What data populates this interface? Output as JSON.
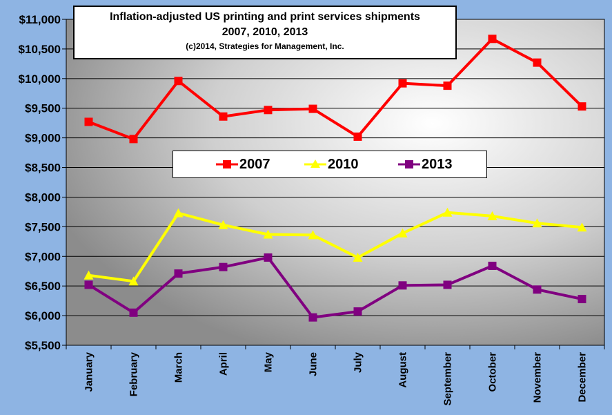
{
  "chart_data": {
    "type": "line",
    "title": "Inflation-adjusted US printing and print services shipments",
    "subtitle": "2007, 2010, 2013",
    "credit": "(c)2014, Strategies for Management, Inc.",
    "categories": [
      "January",
      "February",
      "March",
      "April",
      "May",
      "June",
      "July",
      "August",
      "September",
      "October",
      "November",
      "December"
    ],
    "ylim": [
      5500,
      11000
    ],
    "yticks": [
      5500,
      6000,
      6500,
      7000,
      7500,
      8000,
      8500,
      9000,
      9500,
      10000,
      10500,
      11000
    ],
    "ytick_labels": [
      "$5,500",
      "$6,000",
      "$6,500",
      "$7,000",
      "$7,500",
      "$8,000",
      "$8,500",
      "$9,000",
      "$9,500",
      "$10,000",
      "$10,500",
      "$11,000"
    ],
    "grid": true,
    "legend_position": "center",
    "series": [
      {
        "name": "2007",
        "color": "#ff0000",
        "marker": "square",
        "values": [
          9270,
          8980,
          9960,
          9360,
          9470,
          9490,
          9020,
          9920,
          9880,
          10670,
          10270,
          9530
        ]
      },
      {
        "name": "2010",
        "color": "#ffff00",
        "marker": "triangle",
        "values": [
          6680,
          6580,
          7730,
          7530,
          7370,
          7360,
          6980,
          7390,
          7740,
          7680,
          7560,
          7490
        ]
      },
      {
        "name": "2013",
        "color": "#800080",
        "marker": "square",
        "values": [
          6520,
          6050,
          6710,
          6820,
          6980,
          5970,
          6070,
          6510,
          6520,
          6840,
          6440,
          6280
        ]
      }
    ]
  }
}
